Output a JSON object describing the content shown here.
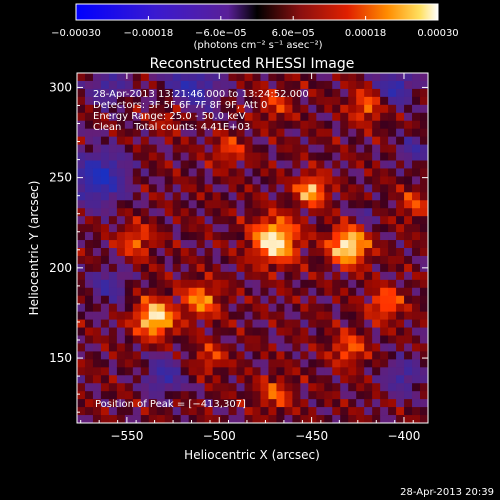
{
  "chart_data": {
    "type": "heatmap",
    "title": "Reconstructed RHESSI Image",
    "xlabel": "Heliocentric X (arcsec)",
    "ylabel": "Heliocentric Y (arcsec)",
    "xlim": [
      -577,
      -387
    ],
    "ylim": [
      114,
      308
    ],
    "x_ticks": [
      -550,
      -500,
      -450,
      -400
    ],
    "x_tick_labels": [
      "−550",
      "−500",
      "−450",
      "−400"
    ],
    "y_ticks": [
      150,
      200,
      250,
      300
    ],
    "y_tick_labels": [
      "150",
      "200",
      "250",
      "300"
    ],
    "colorbar": {
      "range": [
        -0.0003,
        0.0003
      ],
      "tick_labels": [
        "−0.00030",
        "−0.00018",
        "−6.0e−05",
        "6.0e−05",
        "0.00018",
        "0.00030"
      ],
      "tick_values": [
        -0.0003,
        -0.00018,
        -6e-05,
        6e-05,
        0.00018,
        0.0003
      ],
      "units_label": "(photons cm⁻² s⁻¹ asec⁻²)"
    },
    "annotations": {
      "time_range": "28-Apr-2013 13:21:46.000 to 13:24:52.000",
      "detectors": "Detectors: 3F 5F 6F 7F 8F 9F, Att 0",
      "energy_range": "Energy Range: 25.0 - 50.0 keV",
      "clean": "Clean    Total counts: 4.41E+03",
      "peak": "Position of Peak = [−413,307]"
    },
    "peak_position": [
      -413,
      307
    ],
    "total_counts": 4410,
    "energy_range_kev": [
      25.0,
      50.0
    ],
    "grid": false,
    "legend": "none"
  },
  "footer": {
    "timestamp": "28-Apr-2013 20:39"
  },
  "colors": {
    "background": "#000000",
    "foreground": "#ffffff"
  }
}
